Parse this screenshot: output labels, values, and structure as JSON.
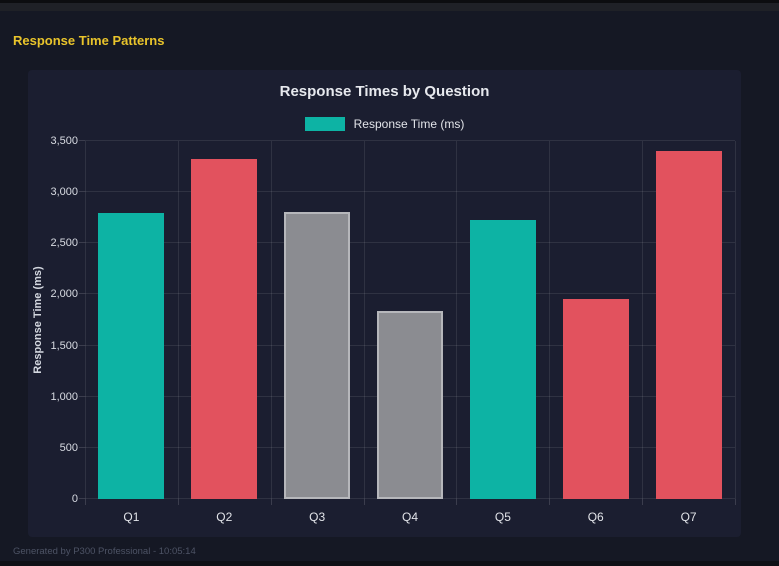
{
  "header": {
    "title": "Response Time Patterns"
  },
  "footer": {
    "text": "Generated by P300 Professional - 10:05:14"
  },
  "colors": {
    "accent_yellow": "#e9c42b",
    "teal": "#0db3a4",
    "red": "#e2525e",
    "gray": "#8b8c91",
    "gray_border": "#b6b7bb",
    "card_bg": "#1b1e30",
    "page_bg": "#151824"
  },
  "chart_data": {
    "type": "bar",
    "title": "Response Times by Question",
    "categories": [
      "Q1",
      "Q2",
      "Q3",
      "Q4",
      "Q5",
      "Q6",
      "Q7"
    ],
    "values": [
      2800,
      3320,
      2810,
      1840,
      2730,
      1960,
      3400
    ],
    "bar_colors": [
      "teal",
      "red",
      "gray",
      "gray",
      "teal",
      "red",
      "red"
    ],
    "palette": {
      "teal": "#0db3a4",
      "red": "#e2525e",
      "gray": "#8b8c91"
    },
    "gray_border": "#b6b7bb",
    "xlabel": "",
    "ylabel": "Response Time (ms)",
    "ylim": [
      0,
      3500
    ],
    "ytick_step": 500,
    "ytick_labels": [
      "0",
      "500",
      "1,000",
      "1,500",
      "2,000",
      "2,500",
      "3,000",
      "3,500"
    ],
    "grid": true,
    "legend_position": "top",
    "legend": [
      {
        "label": "Response Time (ms)",
        "color": "#0db3a4"
      }
    ]
  }
}
